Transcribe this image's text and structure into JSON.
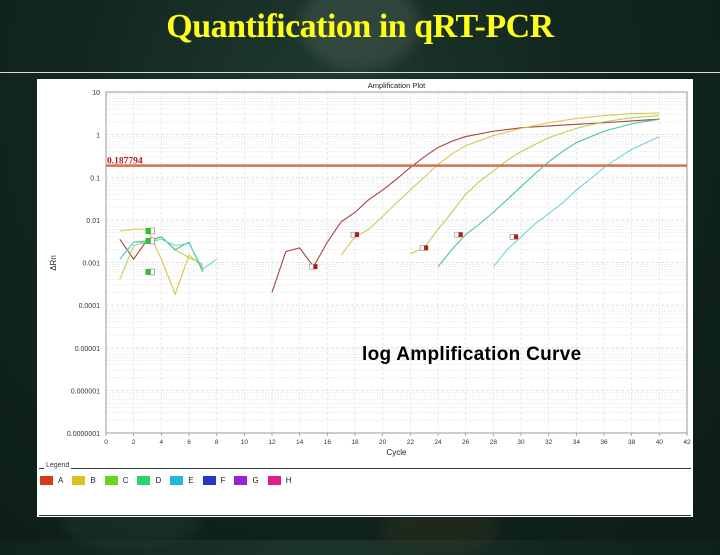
{
  "slide": {
    "title": "Quantification in qRT-PCR",
    "annotation": "log Amplification Curve"
  },
  "legend": {
    "title": "Legend",
    "items": [
      {
        "label": "A",
        "color": "#d63a1e"
      },
      {
        "label": "B",
        "color": "#d9c21e"
      },
      {
        "label": "C",
        "color": "#6bd31e"
      },
      {
        "label": "D",
        "color": "#2ad46a"
      },
      {
        "label": "E",
        "color": "#22b8dc"
      },
      {
        "label": "F",
        "color": "#2436cc"
      },
      {
        "label": "G",
        "color": "#9a22d6"
      },
      {
        "label": "H",
        "color": "#e01e8a"
      }
    ]
  },
  "chart_data": {
    "type": "line",
    "title": "Amplification Plot",
    "xlabel": "Cycle",
    "ylabel": "ΔRn",
    "yscale": "log",
    "xlim": [
      0,
      42
    ],
    "ylim": [
      1e-07,
      10
    ],
    "x_ticks": [
      0,
      2,
      4,
      6,
      8,
      10,
      12,
      14,
      16,
      18,
      20,
      22,
      24,
      26,
      28,
      30,
      32,
      34,
      36,
      38,
      40,
      42
    ],
    "y_ticks": [
      {
        "value": 10,
        "label": "10"
      },
      {
        "value": 1,
        "label": "1"
      },
      {
        "value": 0.1,
        "label": "0.1"
      },
      {
        "value": 0.01,
        "label": "0.01"
      },
      {
        "value": 0.001,
        "label": "0.001"
      },
      {
        "value": 0.0001,
        "label": "0.0001"
      },
      {
        "value": 1e-05,
        "label": "0.00001"
      },
      {
        "value": 1e-06,
        "label": "0.000001"
      },
      {
        "value": 1e-07,
        "label": "0.0000001"
      }
    ],
    "threshold": {
      "value": 0.187794,
      "label": "0.187794",
      "color": "#d9704e"
    },
    "grid": true,
    "legend_position": "bottom",
    "series": [
      {
        "name": "A",
        "color": "#a0302a",
        "baseline": [
          [
            1,
            0.0035
          ],
          [
            2,
            0.0012
          ],
          [
            3,
            0.0035
          ]
        ],
        "points": [
          [
            12,
            0.0002
          ],
          [
            13,
            0.0018
          ],
          [
            14,
            0.0022
          ],
          [
            15,
            0.0008
          ],
          [
            16,
            0.003
          ],
          [
            17,
            0.009
          ],
          [
            18,
            0.015
          ],
          [
            19,
            0.03
          ],
          [
            20,
            0.05
          ],
          [
            21,
            0.09
          ],
          [
            22,
            0.17
          ],
          [
            23,
            0.3
          ],
          [
            24,
            0.5
          ],
          [
            25,
            0.7
          ],
          [
            26,
            0.9
          ],
          [
            28,
            1.2
          ],
          [
            30,
            1.45
          ],
          [
            32,
            1.6
          ],
          [
            34,
            1.75
          ],
          [
            36,
            1.9
          ],
          [
            38,
            2.1
          ],
          [
            40,
            2.3
          ]
        ],
        "ct_marker": [
          15,
          0.0008
        ]
      },
      {
        "name": "B",
        "color": "#d8c040",
        "baseline": [
          [
            1,
            0.0055
          ],
          [
            2,
            0.006
          ],
          [
            3,
            0.006
          ],
          [
            4,
            0.0012
          ],
          [
            5,
            0.00018
          ],
          [
            6,
            0.0015
          ],
          [
            7,
            0.0008
          ]
        ],
        "points": [
          [
            17,
            0.0015
          ],
          [
            18,
            0.004
          ],
          [
            19,
            0.006
          ],
          [
            20,
            0.012
          ],
          [
            21,
            0.025
          ],
          [
            22,
            0.05
          ],
          [
            23,
            0.1
          ],
          [
            24,
            0.2
          ],
          [
            25,
            0.35
          ],
          [
            26,
            0.55
          ],
          [
            28,
            0.95
          ],
          [
            30,
            1.4
          ],
          [
            32,
            1.9
          ],
          [
            34,
            2.4
          ],
          [
            36,
            2.8
          ],
          [
            38,
            3.1
          ],
          [
            40,
            3.2
          ]
        ],
        "ct_marker": [
          18,
          0.0045
        ]
      },
      {
        "name": "C",
        "color": "#a8d040",
        "baseline": [
          [
            1,
            0.0004
          ],
          [
            2,
            0.0025
          ],
          [
            3,
            0.003
          ],
          [
            4,
            0.004
          ],
          [
            5,
            0.002
          ],
          [
            6,
            0.0013
          ],
          [
            7,
            0.0009
          ]
        ],
        "points": [
          [
            22,
            0.0016
          ],
          [
            23,
            0.0022
          ],
          [
            24,
            0.006
          ],
          [
            25,
            0.015
          ],
          [
            26,
            0.04
          ],
          [
            27,
            0.08
          ],
          [
            28,
            0.14
          ],
          [
            29,
            0.25
          ],
          [
            30,
            0.4
          ],
          [
            32,
            0.85
          ],
          [
            34,
            1.4
          ],
          [
            36,
            2.0
          ],
          [
            38,
            2.5
          ],
          [
            40,
            2.8
          ]
        ],
        "ct_marker": [
          23,
          0.0022
        ]
      },
      {
        "name": "D",
        "color": "#3cc080",
        "baseline": [
          [
            1,
            0.0012
          ],
          [
            2,
            0.003
          ],
          [
            3,
            0.0032
          ],
          [
            4,
            0.004
          ],
          [
            5,
            0.002
          ],
          [
            6,
            0.003
          ],
          [
            7,
            0.0006
          ]
        ],
        "points": [
          [
            24,
            0.0008
          ],
          [
            25,
            0.002
          ],
          [
            26,
            0.0045
          ],
          [
            27,
            0.008
          ],
          [
            28,
            0.015
          ],
          [
            29,
            0.03
          ],
          [
            30,
            0.06
          ],
          [
            31,
            0.12
          ],
          [
            32,
            0.23
          ],
          [
            33,
            0.4
          ],
          [
            34,
            0.65
          ],
          [
            36,
            1.2
          ],
          [
            38,
            1.8
          ],
          [
            40,
            2.3
          ]
        ],
        "ct_marker": [
          25.5,
          0.0045
        ]
      },
      {
        "name": "E",
        "color": "#60d0d8",
        "baseline": [
          [
            1,
            0.0012
          ],
          [
            2,
            0.003
          ],
          [
            3,
            0.003
          ],
          [
            4,
            0.0035
          ],
          [
            5,
            0.0025
          ],
          [
            6,
            0.0028
          ],
          [
            7,
            0.0007
          ],
          [
            8,
            0.0012
          ]
        ],
        "points": [
          [
            28,
            0.0008
          ],
          [
            29,
            0.002
          ],
          [
            30,
            0.004
          ],
          [
            31,
            0.008
          ],
          [
            32,
            0.014
          ],
          [
            33,
            0.025
          ],
          [
            34,
            0.05
          ],
          [
            35,
            0.09
          ],
          [
            36,
            0.17
          ],
          [
            37,
            0.28
          ],
          [
            38,
            0.45
          ],
          [
            40,
            0.9
          ]
        ],
        "ct_marker": [
          29.5,
          0.004
        ]
      }
    ]
  }
}
